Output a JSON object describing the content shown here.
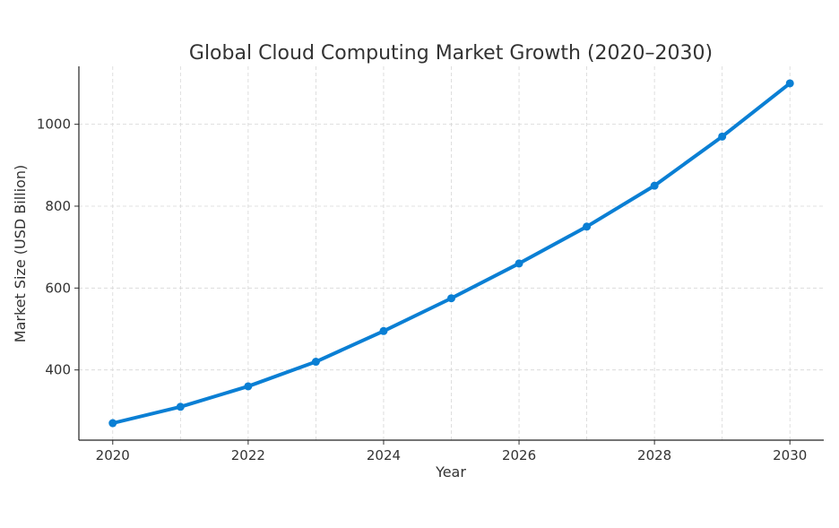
{
  "chart_data": {
    "type": "line",
    "title": "Global Cloud Computing Market Growth (2020–2030)",
    "xlabel": "Year",
    "ylabel": "Market Size (USD Billion)",
    "x": [
      2020,
      2021,
      2022,
      2023,
      2024,
      2025,
      2026,
      2027,
      2028,
      2029,
      2030
    ],
    "series": [
      {
        "name": "Market Size",
        "values": [
          270,
          310,
          360,
          420,
          495,
          575,
          660,
          750,
          850,
          970,
          1100
        ],
        "color": "#0a7fd4"
      }
    ],
    "xticks": [
      "2020",
      "2022",
      "2024",
      "2026",
      "2028",
      "2030"
    ],
    "yticks": [
      "400",
      "600",
      "800",
      "1000"
    ],
    "xlim": [
      2019.5,
      2030.5
    ],
    "ylim": [
      228.5,
      1141.5
    ],
    "grid": true,
    "legend": "none"
  }
}
